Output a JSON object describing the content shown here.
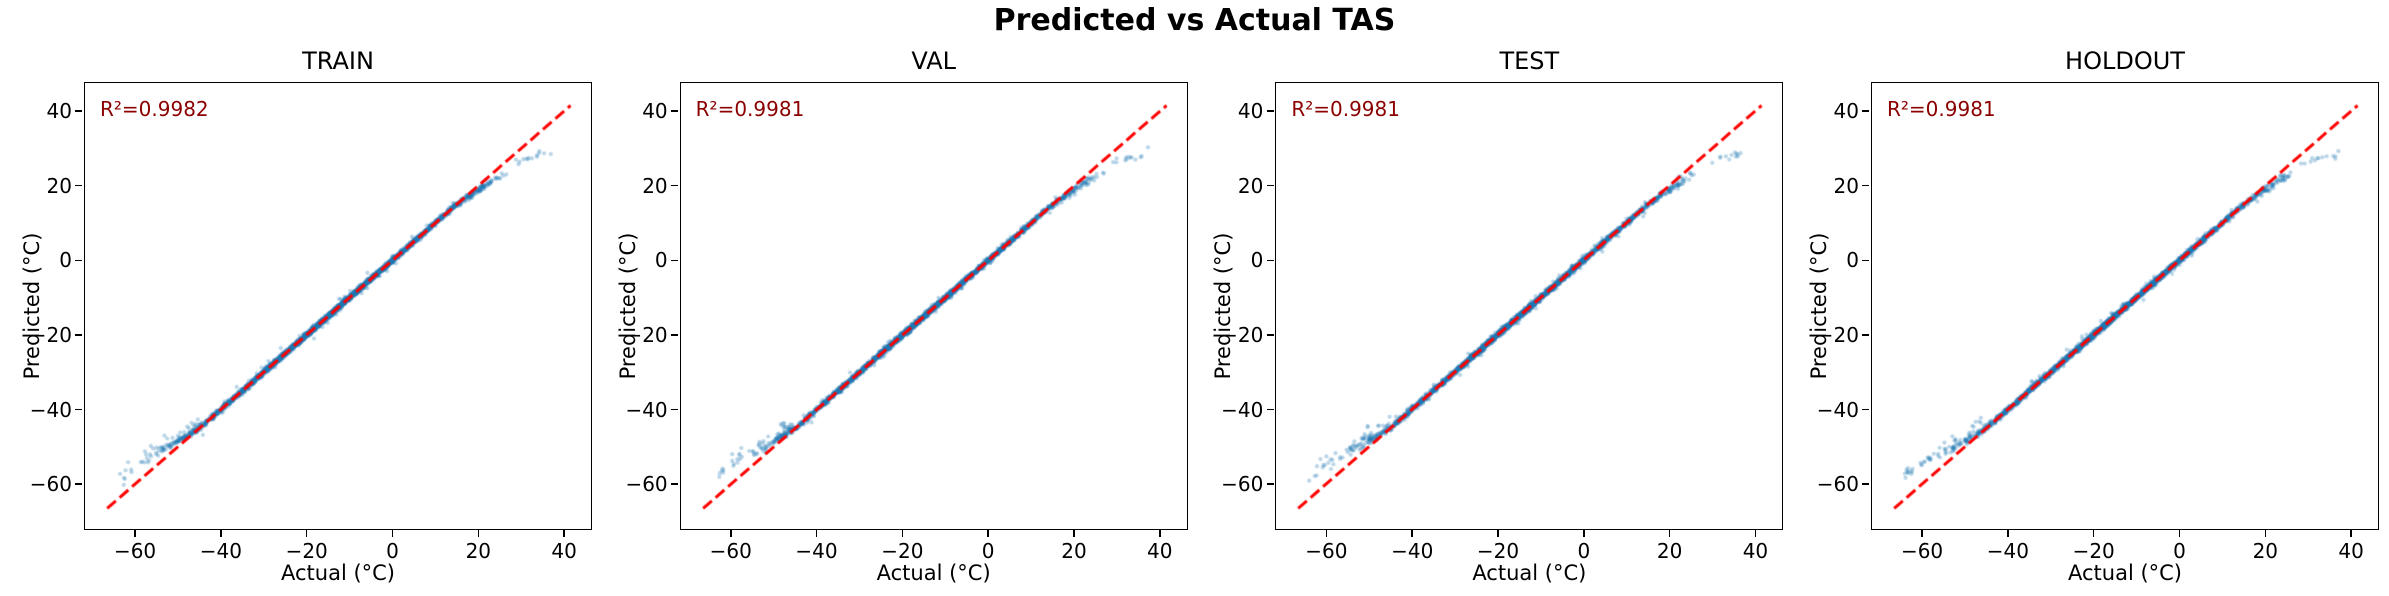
{
  "title": "Predicted vs Actual TAS",
  "colors": {
    "background": "#ffffff",
    "scatter": "#1f77b4",
    "scatter_alpha": 0.3,
    "identity_line": "#ff0000",
    "r2_text": "#8b0000",
    "axis": "#000000",
    "text": "#000000"
  },
  "chart_data": [
    {
      "type": "scatter",
      "title": "TRAIN",
      "r2_label": "R²=0.9982",
      "r2_value": 0.9982,
      "xlabel": "Actual (°C)",
      "ylabel": "Predicted (°C)",
      "xlim": [
        -71.9,
        46.5
      ],
      "ylim": [
        -72.3,
        47.8
      ],
      "xticks": [
        -60,
        -40,
        -20,
        0,
        20,
        40
      ],
      "xtick_labels": [
        "−60",
        "−40",
        "−20",
        "0",
        "20",
        "40"
      ],
      "yticks": [
        40,
        20,
        0,
        -20,
        -40,
        -60
      ],
      "ytick_labels": [
        "40",
        "20",
        "0",
        "−20",
        "−40",
        "−60"
      ],
      "grid": false,
      "identity_line": {
        "x0": -66.5,
        "y0": -66.5,
        "x1": 41.5,
        "y1": 41.5,
        "style": "dashed"
      },
      "scatter": {
        "seed": 11,
        "count": 3000,
        "band_min": -56,
        "band_max": 27.5,
        "noise_sd": 0.34,
        "low_bend_start": -45,
        "low_bend_rate": 0.3,
        "high_bend_start": 15,
        "high_bend_rate": 0.22,
        "low_tail_count": 46,
        "high_tail_count": 14,
        "description": "dense band hugging identity line from -56 to 27 °C; sits above line below -50 °C and flattens below line above 25 °C"
      }
    },
    {
      "type": "scatter",
      "title": "VAL",
      "r2_label": "R²=0.9981",
      "r2_value": 0.9981,
      "xlabel": "Actual (°C)",
      "ylabel": "Predicted (°C)",
      "xlim": [
        -71.9,
        46.5
      ],
      "ylim": [
        -72.3,
        47.8
      ],
      "xticks": [
        -60,
        -40,
        -20,
        0,
        20,
        40
      ],
      "xtick_labels": [
        "−60",
        "−40",
        "−20",
        "0",
        "20",
        "40"
      ],
      "yticks": [
        40,
        20,
        0,
        -20,
        -40,
        -60
      ],
      "ytick_labels": [
        "40",
        "20",
        "0",
        "−20",
        "−40",
        "−60"
      ],
      "grid": false,
      "identity_line": {
        "x0": -66.5,
        "y0": -66.5,
        "x1": 41.5,
        "y1": 41.5,
        "style": "dashed"
      },
      "scatter": {
        "seed": 22,
        "count": 2600,
        "band_min": -56,
        "band_max": 27.5,
        "noise_sd": 0.36,
        "low_bend_start": -45,
        "low_bend_rate": 0.3,
        "high_bend_start": 15,
        "high_bend_rate": 0.22,
        "low_tail_count": 40,
        "high_tail_count": 13,
        "description": "dense band hugging identity line; same saturation pattern at both extremes"
      }
    },
    {
      "type": "scatter",
      "title": "TEST",
      "r2_label": "R²=0.9981",
      "r2_value": 0.9981,
      "xlabel": "Actual (°C)",
      "ylabel": "Predicted (°C)",
      "xlim": [
        -71.9,
        46.5
      ],
      "ylim": [
        -72.3,
        47.8
      ],
      "xticks": [
        -60,
        -40,
        -20,
        0,
        20,
        40
      ],
      "xtick_labels": [
        "−60",
        "−40",
        "−20",
        "0",
        "20",
        "40"
      ],
      "yticks": [
        40,
        20,
        0,
        -20,
        -40,
        -60
      ],
      "ytick_labels": [
        "40",
        "20",
        "0",
        "−20",
        "−40",
        "−60"
      ],
      "grid": false,
      "identity_line": {
        "x0": -66.5,
        "y0": -66.5,
        "x1": 41.5,
        "y1": 41.5,
        "style": "dashed"
      },
      "scatter": {
        "seed": 33,
        "count": 2600,
        "band_min": -56,
        "band_max": 27.5,
        "noise_sd": 0.36,
        "low_bend_start": -45,
        "low_bend_rate": 0.3,
        "high_bend_start": 15,
        "high_bend_rate": 0.22,
        "low_tail_count": 42,
        "high_tail_count": 12,
        "description": "dense band hugging identity line; same saturation pattern at both extremes"
      }
    },
    {
      "type": "scatter",
      "title": "HOLDOUT",
      "r2_label": "R²=0.9981",
      "r2_value": 0.9981,
      "xlabel": "Actual (°C)",
      "ylabel": "Predicted (°C)",
      "xlim": [
        -71.9,
        46.5
      ],
      "ylim": [
        -72.3,
        47.8
      ],
      "xticks": [
        -60,
        -40,
        -20,
        0,
        20,
        40
      ],
      "xtick_labels": [
        "−60",
        "−40",
        "−20",
        "0",
        "20",
        "40"
      ],
      "yticks": [
        40,
        20,
        0,
        -20,
        -40,
        -60
      ],
      "ytick_labels": [
        "40",
        "20",
        "0",
        "−20",
        "−40",
        "−60"
      ],
      "grid": false,
      "identity_line": {
        "x0": -66.5,
        "y0": -66.5,
        "x1": 41.5,
        "y1": 41.5,
        "style": "dashed"
      },
      "scatter": {
        "seed": 44,
        "count": 2600,
        "band_min": -56,
        "band_max": 27.5,
        "noise_sd": 0.36,
        "low_bend_start": -45,
        "low_bend_rate": 0.3,
        "high_bend_start": 15,
        "high_bend_rate": 0.22,
        "low_tail_count": 44,
        "high_tail_count": 13,
        "description": "dense band hugging identity line; same saturation pattern at both extremes"
      }
    }
  ]
}
